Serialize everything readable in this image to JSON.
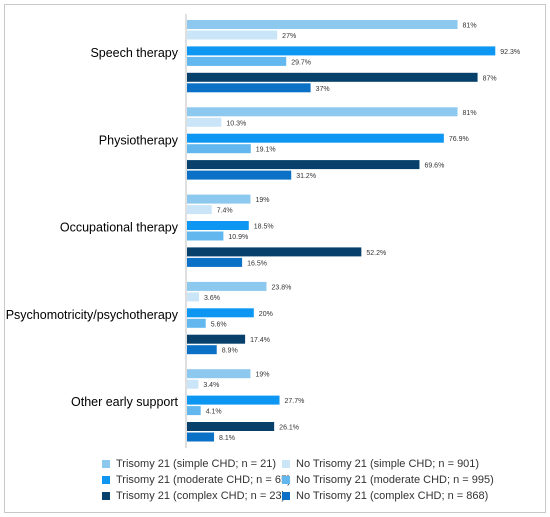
{
  "chart_data": {
    "type": "bar",
    "orientation": "horizontal",
    "categories": [
      "Speech therapy",
      "Physiotherapy",
      "Occupational therapy",
      "Psychomotricity/psychotherapy",
      "Other early support"
    ],
    "series": [
      {
        "name": "Trisomy 21 (simple CHD; n = 21)",
        "color": "#8dc8ee",
        "values": [
          81,
          81,
          19,
          23.8,
          19
        ],
        "labels": [
          "81%",
          "81%",
          "19%",
          "23.8%",
          "19%"
        ]
      },
      {
        "name": "No Trisomy 21 (simple CHD; n = 901)",
        "color": "#c9e5f7",
        "values": [
          27,
          10.3,
          7.4,
          3.6,
          3.4
        ],
        "labels": [
          "27%",
          "10.3%",
          "7.4%",
          "3.6%",
          "3.4%"
        ]
      },
      {
        "name": "Trisomy 21 (moderate CHD; n = 65)",
        "color": "#0d97f2",
        "values": [
          92.3,
          76.9,
          18.5,
          20,
          27.7
        ],
        "labels": [
          "92.3%",
          "76.9%",
          "18.5%",
          "20%",
          "27.7%"
        ]
      },
      {
        "name": "No Trisomy 21 (moderate CHD; n = 995)",
        "color": "#62b8ee",
        "values": [
          29.7,
          19.1,
          10.9,
          5.6,
          4.1
        ],
        "labels": [
          "29.7%",
          "19.1%",
          "10.9%",
          "5.6%",
          "4.1%"
        ]
      },
      {
        "name": "Trisomy 21 (complex CHD; n = 23)",
        "color": "#07416b",
        "values": [
          87,
          69.6,
          52.2,
          17.4,
          26.1
        ],
        "labels": [
          "87%",
          "69.6%",
          "52.2%",
          "17.4%",
          "26.1%"
        ]
      },
      {
        "name": "No Trisomy 21 (complex CHD; n = 868)",
        "color": "#0a71c6",
        "values": [
          37,
          31.2,
          16.5,
          8.9,
          8.1
        ],
        "labels": [
          "37%",
          "31.2%",
          "16.5%",
          "8.9%",
          "8.1%"
        ]
      }
    ],
    "xlim": [
      0,
      100
    ],
    "grid": false,
    "legend_position": "bottom"
  }
}
